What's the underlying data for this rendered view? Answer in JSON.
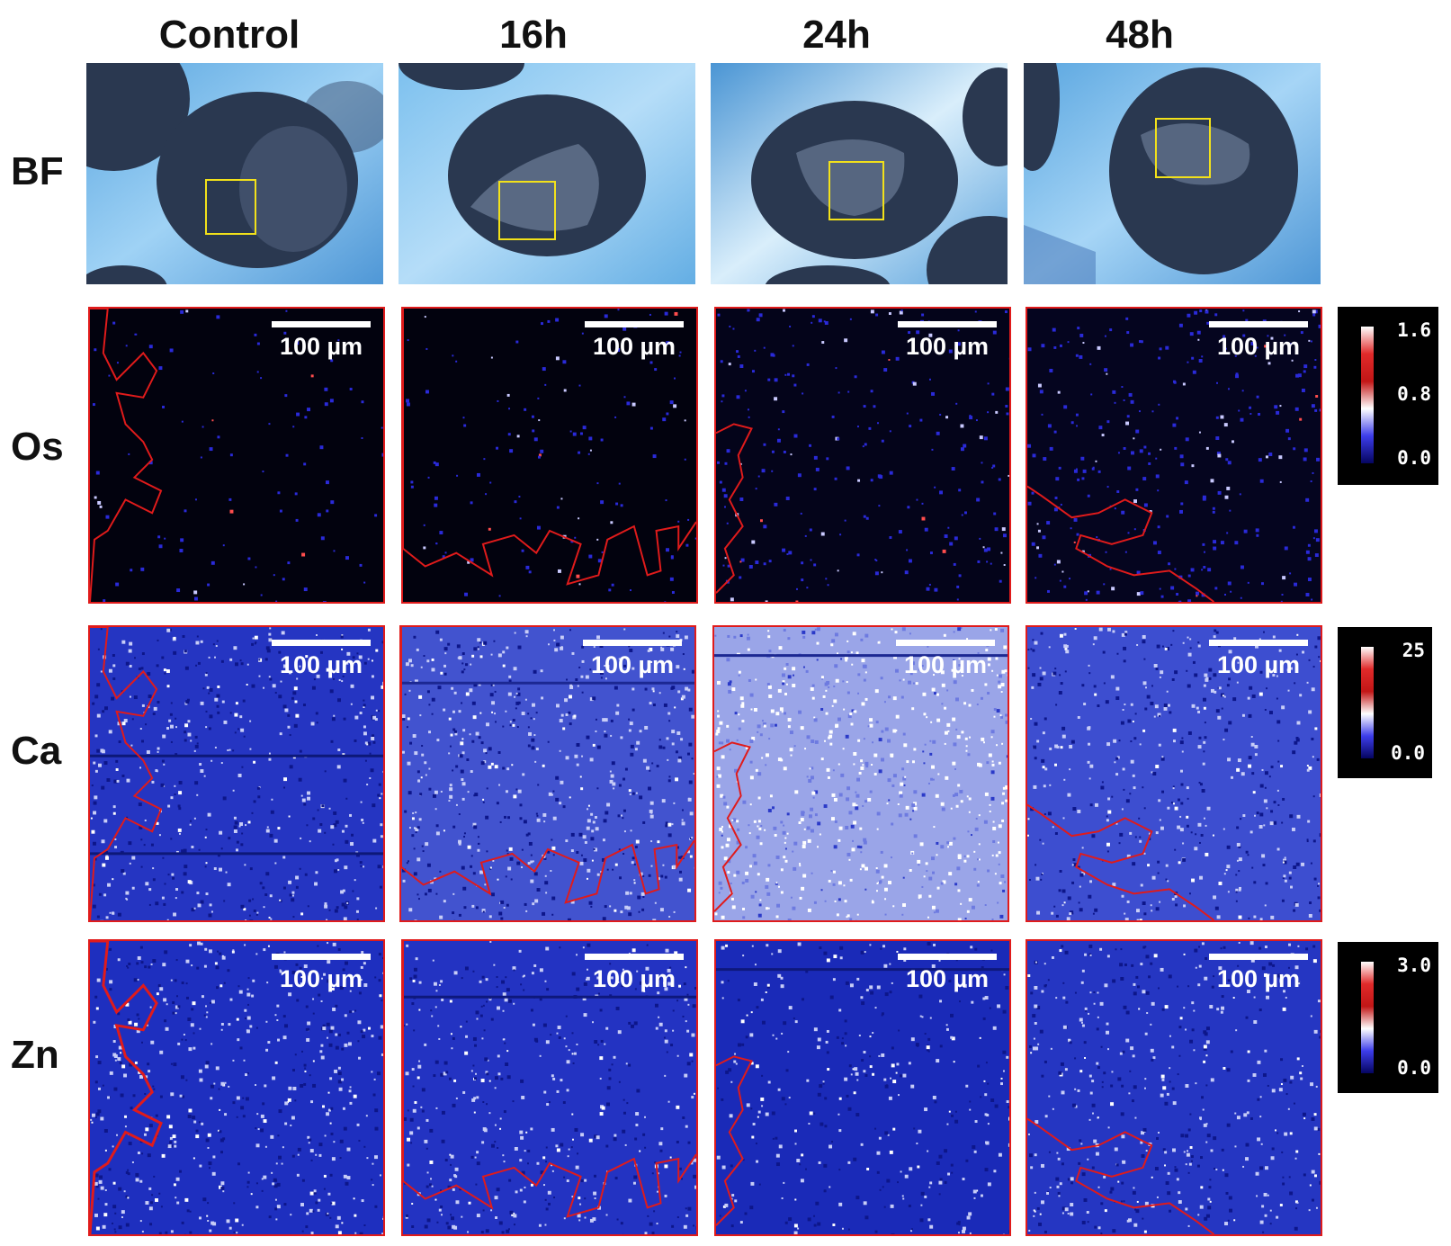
{
  "columns": [
    "Control",
    "16h",
    "24h",
    "48h"
  ],
  "rows": [
    "BF",
    "Os",
    "Ca",
    "Zn"
  ],
  "scale_bar_label": "100 µm",
  "colorbars": {
    "os": {
      "max": "1.6",
      "mid": "0.8",
      "min": "0.0"
    },
    "ca": {
      "max": "25",
      "min": "0.0"
    },
    "zn": {
      "max": "3.0",
      "min": "0.0"
    }
  },
  "colors": {
    "outline": "#e01b1b",
    "roi_box": "#f2e11a",
    "bf_background": "#6db3e8",
    "sample_dark": "#26334a",
    "map_high": "#ffffff",
    "map_low": "#0a0a8a"
  }
}
